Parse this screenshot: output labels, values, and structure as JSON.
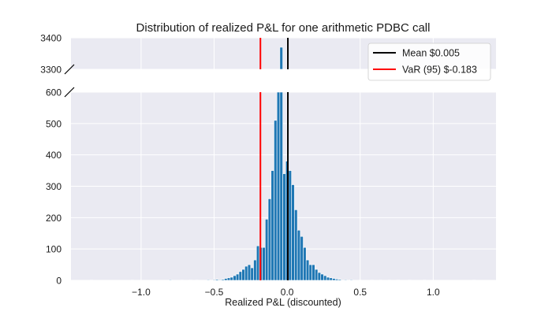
{
  "chart_data": {
    "type": "bar",
    "title": "Distribution of realized P&L for one arithmetic PDBC call",
    "xlabel": "Realized P&L (discounted)",
    "ylabel": "",
    "xlim": [
      -1.48,
      1.43
    ],
    "x_ticks": [
      -1.0,
      -0.5,
      0.0,
      0.5,
      1.0
    ],
    "x_tick_labels": [
      "−1.0",
      "−0.5",
      "0.0",
      "0.5",
      "1.0"
    ],
    "broken_axis": {
      "upper_ylim": [
        3300,
        3400
      ],
      "upper_ticks": [
        3300,
        3400
      ],
      "lower_ylim": [
        0,
        600
      ],
      "lower_ticks": [
        0,
        100,
        200,
        300,
        400,
        500,
        600
      ]
    },
    "grid": true,
    "legend_position": "top-right",
    "bin_width": 0.02,
    "bins": [
      {
        "x": -1.34,
        "y": 1
      },
      {
        "x": -1.06,
        "y": 1
      },
      {
        "x": -0.8,
        "y": 2
      },
      {
        "x": -0.72,
        "y": 1
      },
      {
        "x": -0.66,
        "y": 1
      },
      {
        "x": -0.62,
        "y": 1
      },
      {
        "x": -0.54,
        "y": 2
      },
      {
        "x": -0.5,
        "y": 2
      },
      {
        "x": -0.48,
        "y": 3
      },
      {
        "x": -0.46,
        "y": 2
      },
      {
        "x": -0.44,
        "y": 3
      },
      {
        "x": -0.42,
        "y": 6
      },
      {
        "x": -0.4,
        "y": 8
      },
      {
        "x": -0.38,
        "y": 10
      },
      {
        "x": -0.36,
        "y": 15
      },
      {
        "x": -0.34,
        "y": 20
      },
      {
        "x": -0.32,
        "y": 28
      },
      {
        "x": -0.3,
        "y": 35
      },
      {
        "x": -0.28,
        "y": 45
      },
      {
        "x": -0.26,
        "y": 50
      },
      {
        "x": -0.24,
        "y": 40
      },
      {
        "x": -0.22,
        "y": 65
      },
      {
        "x": -0.2,
        "y": 110
      },
      {
        "x": -0.18,
        "y": 105
      },
      {
        "x": -0.16,
        "y": 105
      },
      {
        "x": -0.14,
        "y": 195
      },
      {
        "x": -0.12,
        "y": 260
      },
      {
        "x": -0.1,
        "y": 350
      },
      {
        "x": -0.08,
        "y": 510
      },
      {
        "x": -0.06,
        "y": 600
      },
      {
        "x": -0.04,
        "y": 3370
      },
      {
        "x": -0.02,
        "y": 340
      },
      {
        "x": 0.0,
        "y": 380
      },
      {
        "x": 0.02,
        "y": 350
      },
      {
        "x": 0.04,
        "y": 305
      },
      {
        "x": 0.06,
        "y": 225
      },
      {
        "x": 0.08,
        "y": 160
      },
      {
        "x": 0.1,
        "y": 140
      },
      {
        "x": 0.12,
        "y": 105
      },
      {
        "x": 0.14,
        "y": 65
      },
      {
        "x": 0.16,
        "y": 50
      },
      {
        "x": 0.18,
        "y": 50
      },
      {
        "x": 0.2,
        "y": 35
      },
      {
        "x": 0.22,
        "y": 25
      },
      {
        "x": 0.24,
        "y": 20
      },
      {
        "x": 0.26,
        "y": 15
      },
      {
        "x": 0.28,
        "y": 10
      },
      {
        "x": 0.3,
        "y": 8
      },
      {
        "x": 0.32,
        "y": 6
      },
      {
        "x": 0.34,
        "y": 4
      },
      {
        "x": 0.36,
        "y": 3
      },
      {
        "x": 0.4,
        "y": 2
      },
      {
        "x": 0.44,
        "y": 2
      },
      {
        "x": 0.5,
        "y": 1
      },
      {
        "x": 0.58,
        "y": 1
      },
      {
        "x": 0.64,
        "y": 1
      },
      {
        "x": 0.7,
        "y": 1
      },
      {
        "x": 0.76,
        "y": 1
      },
      {
        "x": 0.84,
        "y": 1
      },
      {
        "x": 0.94,
        "y": 1
      },
      {
        "x": 1.28,
        "y": 1
      }
    ],
    "vlines": [
      {
        "name": "Mean $0.005",
        "x": 0.005,
        "color": "#000000"
      },
      {
        "name": "VaR (95) $-0.183",
        "x": -0.183,
        "color": "#ff0000"
      }
    ],
    "colors": {
      "bar": "#1f77b4",
      "axes_bg": "#eaeaf2",
      "grid": "#ffffff"
    }
  }
}
